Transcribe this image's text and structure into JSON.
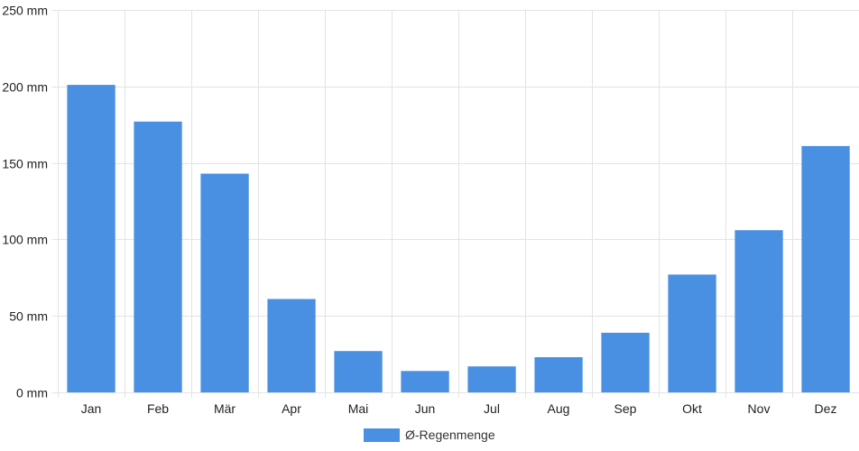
{
  "chart_data": {
    "type": "bar",
    "categories": [
      "Jan",
      "Feb",
      "Mär",
      "Apr",
      "Mai",
      "Jun",
      "Jul",
      "Aug",
      "Sep",
      "Okt",
      "Nov",
      "Dez"
    ],
    "series": [
      {
        "name": "Ø-Regenmenge",
        "values": [
          201,
          177,
          143,
          61,
          27,
          14,
          17,
          23,
          39,
          77,
          106,
          161
        ],
        "color": "#4a90e2"
      }
    ],
    "y_ticks": [
      "0 mm",
      "50 mm",
      "100 mm",
      "150 mm",
      "200 mm",
      "250 mm"
    ],
    "y_tick_values": [
      0,
      50,
      100,
      150,
      200,
      250
    ],
    "ylim": [
      0,
      250
    ],
    "y_unit": "mm",
    "grid": true,
    "legend_position": "bottom"
  },
  "colors": {
    "grid": "#e3e3e3",
    "axis": "#cccccc",
    "bar": "#4a90e2"
  }
}
